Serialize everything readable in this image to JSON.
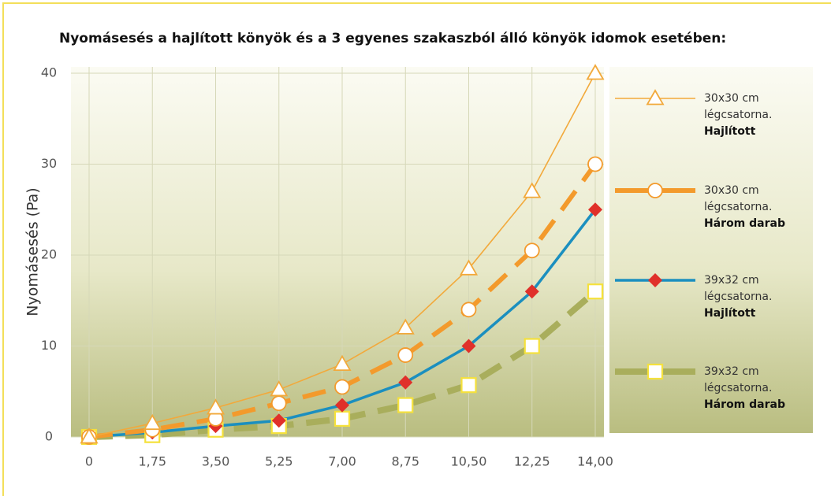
{
  "chart_data": {
    "type": "line",
    "title": "Nyomásesés a hajlított könyök és a 3 egyenes szakaszból álló könyök idomok esetében:",
    "y_label": "Nyomásesés (Pa)",
    "x": [
      0,
      1.75,
      3.5,
      5.25,
      7,
      8.75,
      10.5,
      12.25,
      14
    ],
    "xlim": [
      0,
      14
    ],
    "xticks": [
      0,
      {
        "value": 1.75,
        "label": "1,75"
      },
      {
        "value": 3.5,
        "label": "3,50"
      },
      {
        "value": 5.25,
        "label": "5,25"
      },
      {
        "value": 7,
        "label": "7,00"
      },
      {
        "value": 8.75,
        "label": "8,75"
      },
      {
        "value": 10.5,
        "label": "10,50"
      },
      {
        "value": 12.25,
        "label": "12,25"
      },
      {
        "value": 14,
        "label": "14,00"
      }
    ],
    "ylim": [
      0,
      40
    ],
    "yticks": [
      0,
      10,
      20,
      30,
      40
    ],
    "grid": true,
    "legend": "right",
    "series": [
      {
        "name": "30x30 cm légcsatorna.",
        "variant": "Hajlított",
        "color": "#f2a93b",
        "marker": "triangle",
        "marker_color": "#f2a93b",
        "dashed": false,
        "values": [
          0,
          1.5,
          3.2,
          5.2,
          8,
          12,
          18.5,
          27,
          40
        ]
      },
      {
        "name": "30x30 cm légcsatorna.",
        "variant": "Három darab",
        "color": "#f39a2c",
        "marker": "circle",
        "marker_color": "#f39a2c",
        "dashed": true,
        "values": [
          0,
          0.8,
          2,
          3.7,
          5.5,
          9,
          14,
          20.5,
          30
        ]
      },
      {
        "name": "39x32 cm légcsatorna.",
        "variant": "Hajlított",
        "color": "#1b8fbf",
        "marker": "diamond",
        "marker_color": "#e0302a",
        "dashed": false,
        "values": [
          0,
          0.5,
          1.2,
          1.8,
          3.5,
          6,
          10,
          16,
          25
        ]
      },
      {
        "name": "39x32 cm légcsatorna.",
        "variant": "Három darab",
        "color": "#a9ae5c",
        "marker": "square",
        "marker_color": "#f5e13c",
        "dashed": true,
        "values": [
          0,
          0.2,
          0.8,
          1.2,
          2,
          3.5,
          5.7,
          10,
          16
        ]
      }
    ]
  }
}
